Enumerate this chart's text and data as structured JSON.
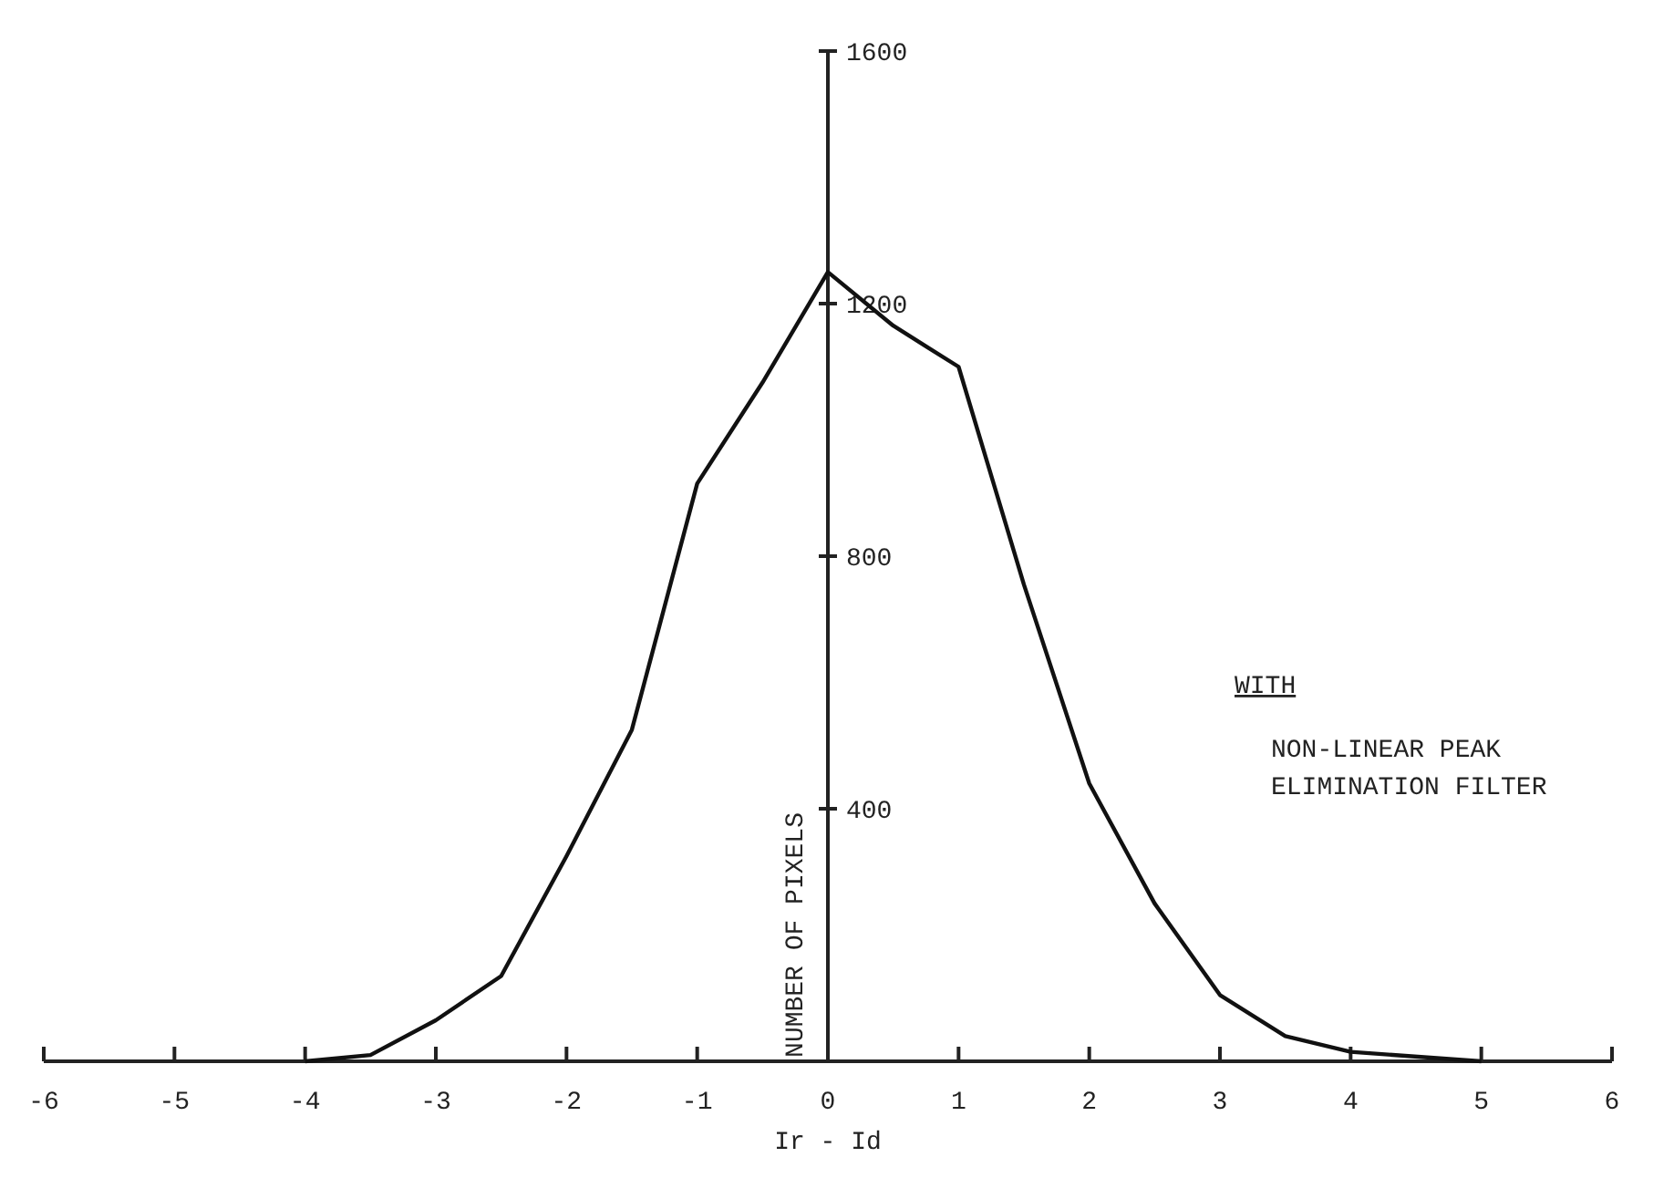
{
  "chart_data": {
    "type": "line",
    "xlabel": "Ir - Id",
    "ylabel": "NUMBER OF PIXELS",
    "xlim": [
      -6,
      6
    ],
    "ylim": [
      0,
      1600
    ],
    "xticks": [
      -6,
      -5,
      -4,
      -3,
      -2,
      -1,
      0,
      1,
      2,
      3,
      4,
      5,
      6
    ],
    "yticks": [
      400,
      800,
      1200,
      1600
    ],
    "grid": false,
    "marker": "none",
    "line_style": "solid",
    "annotations": [
      "WITH",
      "NON-LINEAR PEAK\nELIMINATION FILTER"
    ],
    "series": [
      {
        "color": "#111111",
        "x": [
          -4,
          -3.5,
          -3,
          -2.5,
          -2,
          -1.5,
          -1,
          -0.5,
          0,
          0.5,
          1,
          1.5,
          2,
          2.5,
          3,
          3.5,
          4,
          5
        ],
        "values": [
          0,
          10,
          65,
          135,
          325,
          525,
          915,
          1075,
          1250,
          1165,
          1100,
          755,
          440,
          250,
          105,
          40,
          15,
          0
        ]
      }
    ]
  }
}
